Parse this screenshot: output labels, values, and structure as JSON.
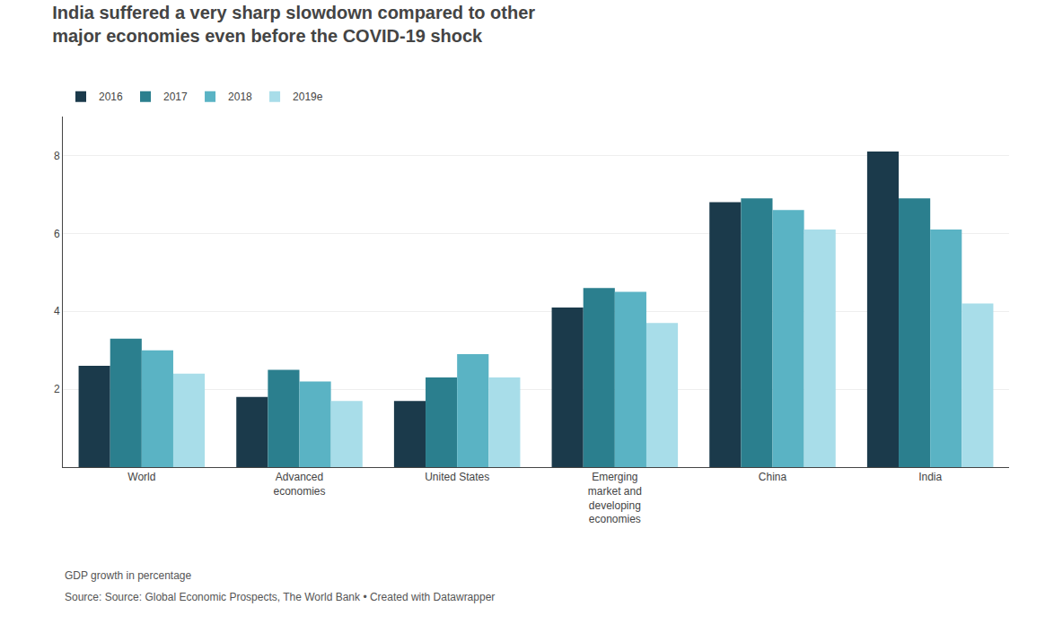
{
  "chart_data": {
    "type": "bar",
    "title": "India suffered a very sharp slowdown compared to other\nmajor economies even before the COVID-19 shock",
    "categories": [
      "World",
      "Advanced\neconomies",
      "United States",
      "Emerging\nmarket and\ndeveloping\neconomies",
      "China",
      "India"
    ],
    "series": [
      {
        "name": "2016",
        "color": "#1b3a4b",
        "values": [
          2.6,
          1.8,
          1.7,
          4.1,
          6.8,
          8.1
        ]
      },
      {
        "name": "2017",
        "color": "#2b7f8e",
        "values": [
          3.3,
          2.5,
          2.3,
          4.6,
          6.9,
          6.9
        ]
      },
      {
        "name": "2018",
        "color": "#5ab3c4",
        "values": [
          3.0,
          2.2,
          2.9,
          4.5,
          6.6,
          6.1
        ]
      },
      {
        "name": "2019e",
        "color": "#a8dde9",
        "values": [
          2.4,
          1.7,
          2.3,
          3.7,
          6.1,
          4.2
        ]
      }
    ],
    "ylim": [
      0,
      9
    ],
    "yticks": [
      2,
      4,
      6,
      8
    ],
    "grid": true,
    "legend": "top left",
    "annotations": [
      "GDP growth in percentage",
      "Source: Source: Global Economic Prospects, The World Bank • Created with Datawrapper"
    ]
  }
}
